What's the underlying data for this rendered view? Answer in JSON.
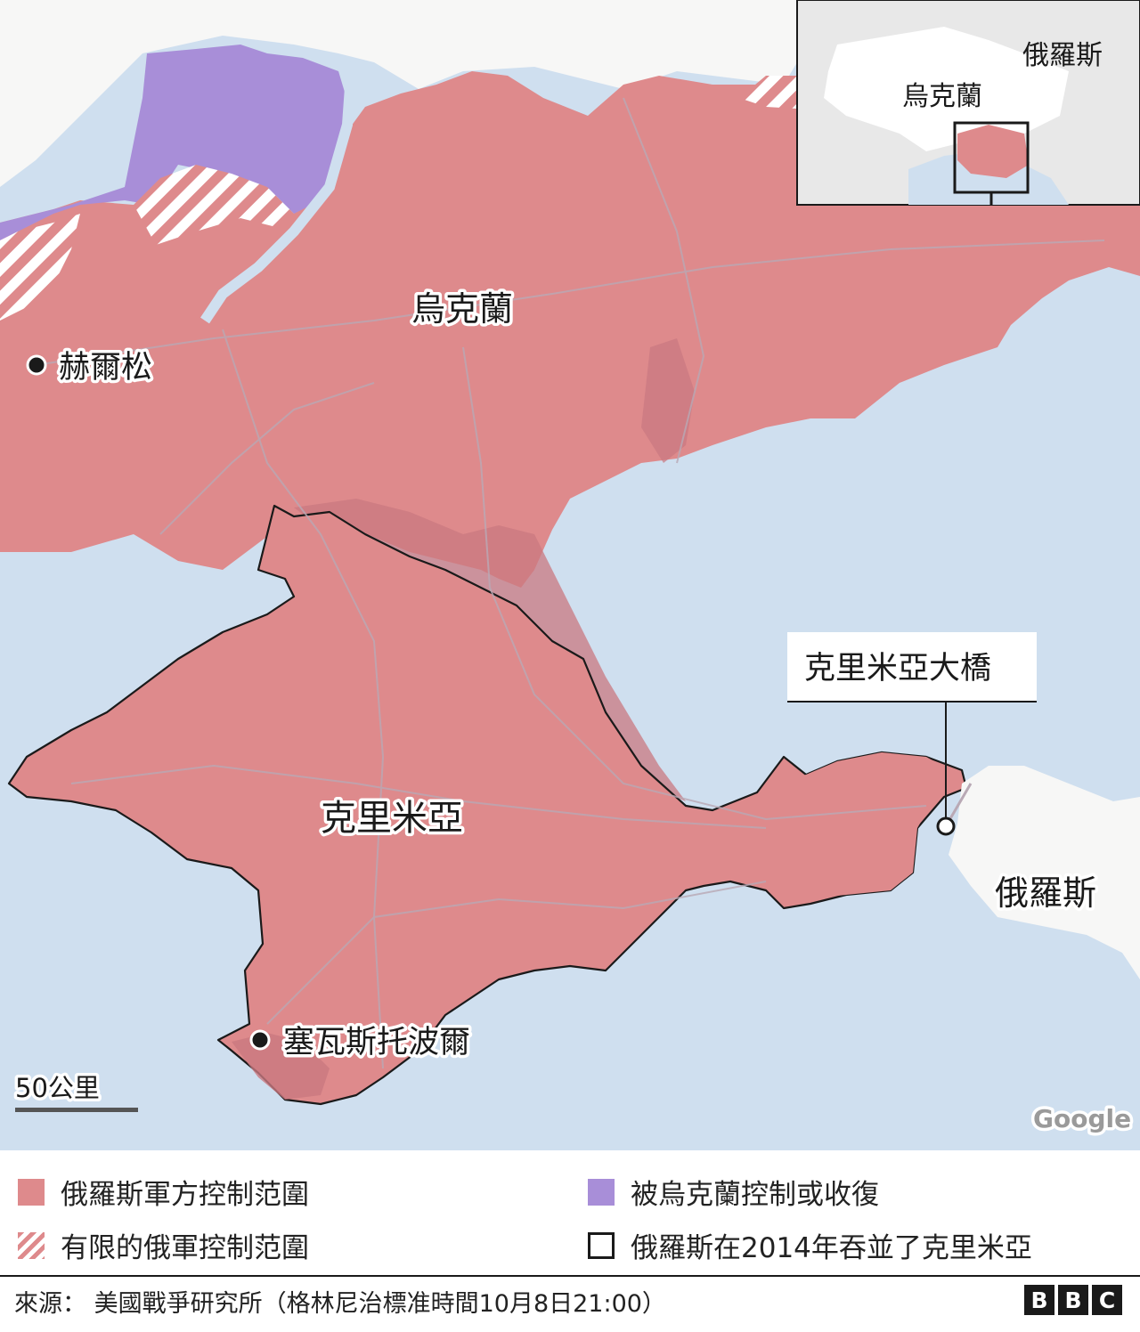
{
  "colors": {
    "sea": "#cfdfef",
    "land": "#ffffff",
    "russian_control": "#de8a8c",
    "ukraine_regained": "#a88ed8",
    "crimea_border": "#1a1a1a",
    "road": "#b9a9b5"
  },
  "map": {
    "labels": {
      "ukraine": "烏克蘭",
      "crimea": "克里米亞",
      "russia": "俄羅斯",
      "kherson": "赫爾松",
      "sevastopol": "塞瓦斯托波爾"
    },
    "callout": "克里米亞大橋",
    "scale_label": "50公里",
    "attribution": "Google",
    "inset": {
      "russia": "俄羅斯",
      "ukraine": "烏克蘭"
    }
  },
  "legend": [
    {
      "label": "俄羅斯軍方控制范圍",
      "swatch": "solid-red"
    },
    {
      "label": "被烏克蘭控制或收復",
      "swatch": "solid-purple"
    },
    {
      "label": "有限的俄軍控制范圍",
      "swatch": "hatched-red"
    },
    {
      "label": "俄羅斯在2014年吞並了克里米亞",
      "swatch": "outline-black"
    }
  ],
  "footer": {
    "source": "來源： 美國戰爭研究所（格林尼治標准時間10月8日21:00）",
    "logo": [
      "B",
      "B",
      "C"
    ]
  }
}
